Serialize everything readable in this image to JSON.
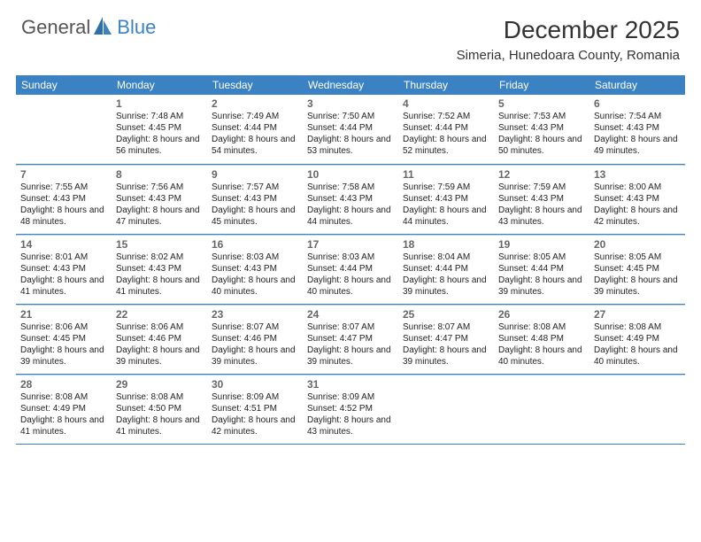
{
  "logo": {
    "part1": "General",
    "part2": "Blue"
  },
  "title": "December 2025",
  "location": "Simeria, Hunedoara County, Romania",
  "colors": {
    "header_bg": "#3b82c4",
    "header_text": "#ffffff",
    "daynum": "#666666",
    "body_text": "#222222",
    "rule": "#3b82c4",
    "cell_rule": "#bcd3e6"
  },
  "dow": [
    "Sunday",
    "Monday",
    "Tuesday",
    "Wednesday",
    "Thursday",
    "Friday",
    "Saturday"
  ],
  "weeks": [
    [
      null,
      {
        "n": "1",
        "sr": "7:48 AM",
        "ss": "4:45 PM",
        "dl": "8 hours and 56 minutes."
      },
      {
        "n": "2",
        "sr": "7:49 AM",
        "ss": "4:44 PM",
        "dl": "8 hours and 54 minutes."
      },
      {
        "n": "3",
        "sr": "7:50 AM",
        "ss": "4:44 PM",
        "dl": "8 hours and 53 minutes."
      },
      {
        "n": "4",
        "sr": "7:52 AM",
        "ss": "4:44 PM",
        "dl": "8 hours and 52 minutes."
      },
      {
        "n": "5",
        "sr": "7:53 AM",
        "ss": "4:43 PM",
        "dl": "8 hours and 50 minutes."
      },
      {
        "n": "6",
        "sr": "7:54 AM",
        "ss": "4:43 PM",
        "dl": "8 hours and 49 minutes."
      }
    ],
    [
      {
        "n": "7",
        "sr": "7:55 AM",
        "ss": "4:43 PM",
        "dl": "8 hours and 48 minutes."
      },
      {
        "n": "8",
        "sr": "7:56 AM",
        "ss": "4:43 PM",
        "dl": "8 hours and 47 minutes."
      },
      {
        "n": "9",
        "sr": "7:57 AM",
        "ss": "4:43 PM",
        "dl": "8 hours and 45 minutes."
      },
      {
        "n": "10",
        "sr": "7:58 AM",
        "ss": "4:43 PM",
        "dl": "8 hours and 44 minutes."
      },
      {
        "n": "11",
        "sr": "7:59 AM",
        "ss": "4:43 PM",
        "dl": "8 hours and 44 minutes."
      },
      {
        "n": "12",
        "sr": "7:59 AM",
        "ss": "4:43 PM",
        "dl": "8 hours and 43 minutes."
      },
      {
        "n": "13",
        "sr": "8:00 AM",
        "ss": "4:43 PM",
        "dl": "8 hours and 42 minutes."
      }
    ],
    [
      {
        "n": "14",
        "sr": "8:01 AM",
        "ss": "4:43 PM",
        "dl": "8 hours and 41 minutes."
      },
      {
        "n": "15",
        "sr": "8:02 AM",
        "ss": "4:43 PM",
        "dl": "8 hours and 41 minutes."
      },
      {
        "n": "16",
        "sr": "8:03 AM",
        "ss": "4:43 PM",
        "dl": "8 hours and 40 minutes."
      },
      {
        "n": "17",
        "sr": "8:03 AM",
        "ss": "4:44 PM",
        "dl": "8 hours and 40 minutes."
      },
      {
        "n": "18",
        "sr": "8:04 AM",
        "ss": "4:44 PM",
        "dl": "8 hours and 39 minutes."
      },
      {
        "n": "19",
        "sr": "8:05 AM",
        "ss": "4:44 PM",
        "dl": "8 hours and 39 minutes."
      },
      {
        "n": "20",
        "sr": "8:05 AM",
        "ss": "4:45 PM",
        "dl": "8 hours and 39 minutes."
      }
    ],
    [
      {
        "n": "21",
        "sr": "8:06 AM",
        "ss": "4:45 PM",
        "dl": "8 hours and 39 minutes."
      },
      {
        "n": "22",
        "sr": "8:06 AM",
        "ss": "4:46 PM",
        "dl": "8 hours and 39 minutes."
      },
      {
        "n": "23",
        "sr": "8:07 AM",
        "ss": "4:46 PM",
        "dl": "8 hours and 39 minutes."
      },
      {
        "n": "24",
        "sr": "8:07 AM",
        "ss": "4:47 PM",
        "dl": "8 hours and 39 minutes."
      },
      {
        "n": "25",
        "sr": "8:07 AM",
        "ss": "4:47 PM",
        "dl": "8 hours and 39 minutes."
      },
      {
        "n": "26",
        "sr": "8:08 AM",
        "ss": "4:48 PM",
        "dl": "8 hours and 40 minutes."
      },
      {
        "n": "27",
        "sr": "8:08 AM",
        "ss": "4:49 PM",
        "dl": "8 hours and 40 minutes."
      }
    ],
    [
      {
        "n": "28",
        "sr": "8:08 AM",
        "ss": "4:49 PM",
        "dl": "8 hours and 41 minutes."
      },
      {
        "n": "29",
        "sr": "8:08 AM",
        "ss": "4:50 PM",
        "dl": "8 hours and 41 minutes."
      },
      {
        "n": "30",
        "sr": "8:09 AM",
        "ss": "4:51 PM",
        "dl": "8 hours and 42 minutes."
      },
      {
        "n": "31",
        "sr": "8:09 AM",
        "ss": "4:52 PM",
        "dl": "8 hours and 43 minutes."
      },
      null,
      null,
      null
    ]
  ],
  "labels": {
    "sunrise": "Sunrise:",
    "sunset": "Sunset:",
    "daylight": "Daylight:"
  }
}
